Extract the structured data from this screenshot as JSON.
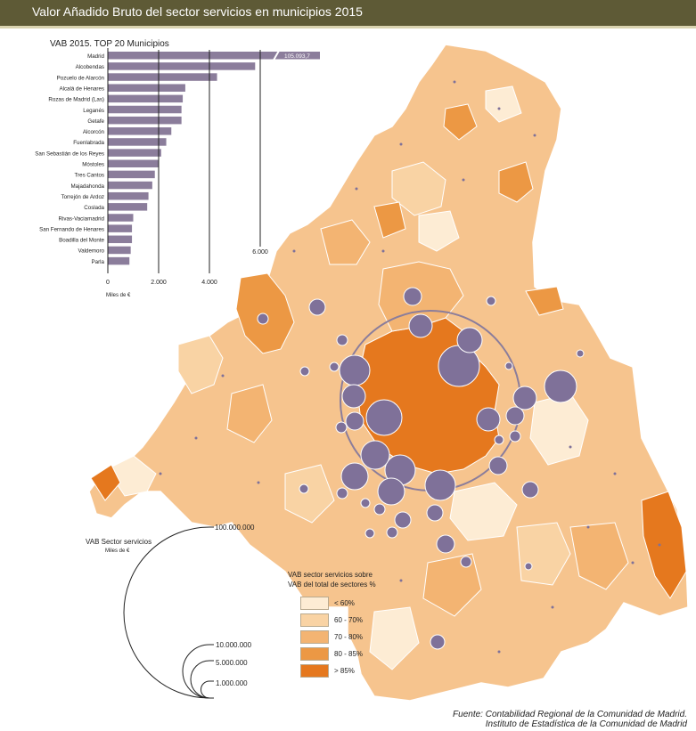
{
  "title": "Valor Añadido Bruto del sector servicios en municipios 2015",
  "chart_data": {
    "type": "bar",
    "orientation": "horizontal",
    "title": "VAB 2015. TOP 20 Municipios",
    "unit_label": "Miles de €",
    "categories": [
      "Madrid",
      "Alcobendas",
      "Pozuelo de Alarcón",
      "Alcalá de Henares",
      "Rozas de Madrid (Las)",
      "Leganés",
      "Getafe",
      "Alcorcón",
      "Fuenlabrada",
      "San Sebastián de los Reyes",
      "Móstoles",
      "Tres Cantos",
      "Majadahonda",
      "Torrejón de Ardoz",
      "Coslada",
      "Rivas-Vaciamadrid",
      "San Fernando de Henares",
      "Boadilla del Monte",
      "Valdemoro",
      "Parla"
    ],
    "values": [
      105093.7,
      5800,
      4300,
      3050,
      2950,
      2900,
      2900,
      2500,
      2300,
      2100,
      2000,
      1850,
      1750,
      1600,
      1550,
      1000,
      950,
      950,
      900,
      850
    ],
    "value_labels": {
      "Madrid": "105.093,7"
    },
    "ticks": [
      0,
      2000,
      4000,
      6000
    ],
    "tick_labels": [
      "0",
      "2.000",
      "4.000",
      "6.000"
    ],
    "xlim": [
      0,
      6000
    ],
    "axis_break": true,
    "bar_color": "#8b7d9b"
  },
  "legend": {
    "title_line1": "VAB sector servicios sobre",
    "title_line2": "VAB del total de sectores %",
    "items": [
      {
        "label": "< 60%",
        "color": "#fdecd4"
      },
      {
        "label": "60 - 70%",
        "color": "#f9d3a4"
      },
      {
        "label": "70 - 80%",
        "color": "#f3b472"
      },
      {
        "label": "80 - 85%",
        "color": "#ec9844"
      },
      {
        "label": "> 85%",
        "color": "#e5781e"
      }
    ]
  },
  "bubble_legend": {
    "title": "VAB Sector servicios",
    "unit": "Miles de €",
    "values": [
      {
        "label": "100.000.000"
      },
      {
        "label": "10.000.000"
      },
      {
        "label": "5.000.000"
      },
      {
        "label": "1.000.000"
      }
    ]
  },
  "source": {
    "line1": "Fuente: Contabilidad Regional de la Comunidad de Madrid.",
    "line2": "Instituto de Estadística de la Comunidad de Madrid"
  },
  "colors": {
    "title_bar": "#5e5a36",
    "bubble": "#7f7199",
    "map_border": "#ffffff"
  }
}
